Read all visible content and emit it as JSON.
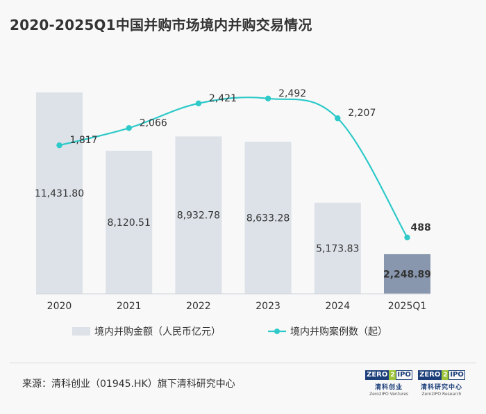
{
  "title": "2020-2025Q1中国并购市场境内并购交易情况",
  "source": "来源：清科创业（01945.HK）旗下清科研究中心",
  "logos": [
    {
      "mark_left": "ZERO",
      "mark_mid": "2",
      "mark_right": "IPO",
      "cn": "清科创业",
      "en": "Zero2IPO Ventures"
    },
    {
      "mark_left": "ZERO",
      "mark_mid": "2",
      "mark_right": "IPO",
      "cn": "清科研究中心",
      "en": "Zero2IPO Research"
    }
  ],
  "colors": {
    "bar": "#dde1e8",
    "bar_highlight": "#8897ae",
    "line": "#2ec9c9",
    "text": "#333333"
  },
  "chart_data": {
    "type": "bar+line",
    "categories": [
      "2020",
      "2021",
      "2022",
      "2023",
      "2024",
      "2025Q1"
    ],
    "series": [
      {
        "name": "境内并购金额（人民币亿元）",
        "type": "bar",
        "values": [
          11431.8,
          8120.51,
          8932.78,
          8633.28,
          5173.83,
          2248.89
        ],
        "labels": [
          "11,431.80",
          "8,120.51",
          "8,932.78",
          "8,633.28",
          "5,173.83",
          "2,248.89"
        ],
        "ylim": [
          0,
          11431.8
        ]
      },
      {
        "name": "境内并购案例数（起）",
        "type": "line",
        "values": [
          1817,
          2066,
          2421,
          2492,
          2207,
          488
        ],
        "labels": [
          "1,817",
          "2,066",
          "2,421",
          "2,492",
          "2,207",
          "488"
        ],
        "ylim": [
          0,
          2700
        ]
      }
    ],
    "highlight_index": 5,
    "legend_position": "bottom"
  }
}
